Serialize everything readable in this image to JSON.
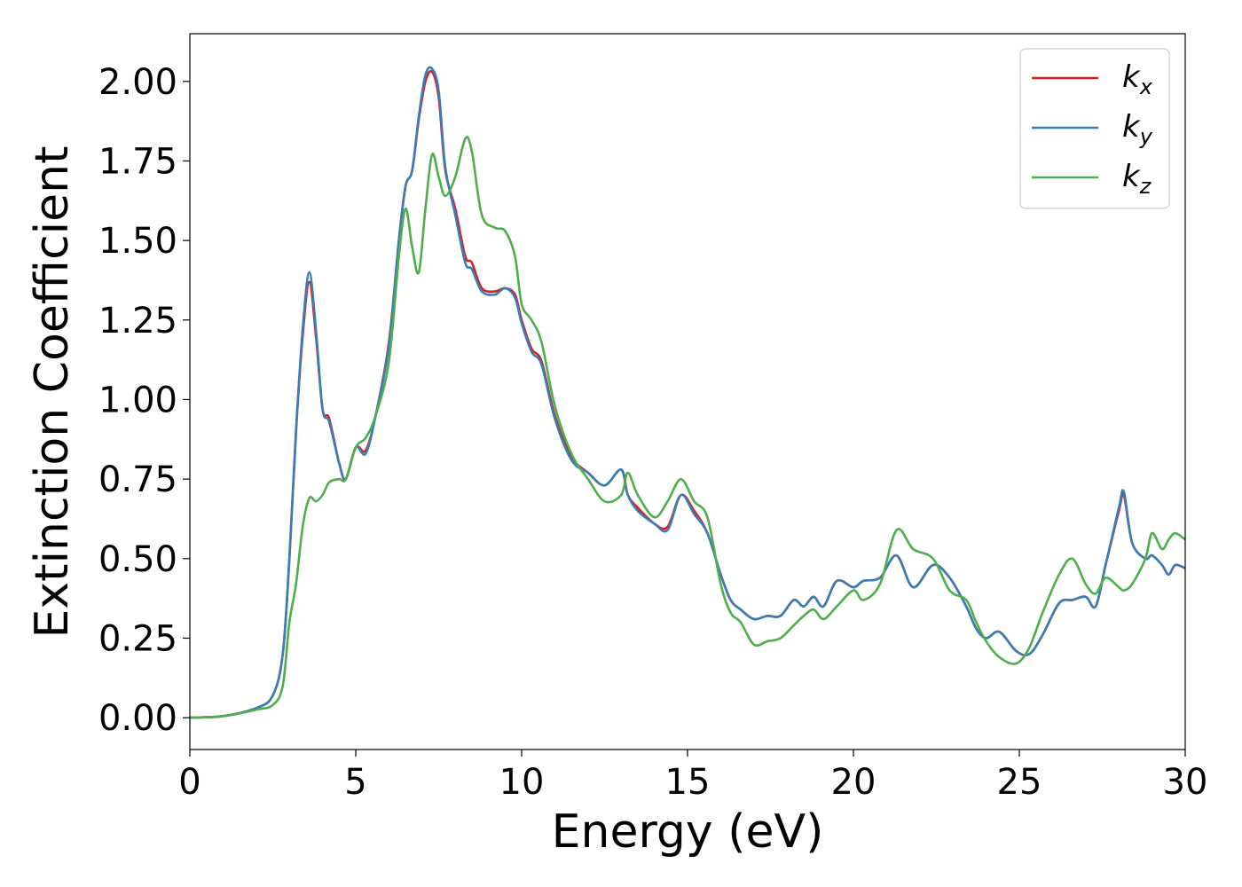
{
  "chart_data": {
    "type": "line",
    "xlabel": "Energy (eV)",
    "ylabel": "Extinction Coefficient",
    "xlim": [
      0,
      30
    ],
    "xticks": [
      0,
      5,
      10,
      15,
      20,
      25,
      30
    ],
    "ylim": [
      -0.1,
      2.15
    ],
    "yticks": [
      {
        "value": 0,
        "label": "0.00"
      },
      {
        "value": 0.25,
        "label": "0.25"
      },
      {
        "value": 0.5,
        "label": "0.50"
      },
      {
        "value": 0.75,
        "label": "0.75"
      },
      {
        "value": 1,
        "label": "1.00"
      },
      {
        "value": 1.25,
        "label": "1.25"
      },
      {
        "value": 1.5,
        "label": "1.50"
      },
      {
        "value": 1.75,
        "label": "1.75"
      },
      {
        "value": 2,
        "label": "2.00"
      }
    ],
    "legend": "upper right",
    "grid": false,
    "x": [
      0,
      1,
      2,
      2.5,
      2.8,
      3.0,
      3.2,
      3.4,
      3.6,
      3.8,
      4.0,
      4.2,
      4.5,
      4.7,
      5.0,
      5.3,
      5.6,
      6.0,
      6.3,
      6.5,
      6.7,
      6.9,
      7.1,
      7.3,
      7.5,
      7.7,
      8.0,
      8.3,
      8.5,
      8.8,
      9.2,
      9.5,
      9.8,
      10.0,
      10.3,
      10.6,
      11.0,
      11.5,
      12.0,
      12.5,
      13.0,
      13.2,
      13.5,
      14.0,
      14.4,
      14.8,
      15.2,
      15.6,
      16.0,
      16.3,
      16.6,
      17.0,
      17.4,
      17.8,
      18.2,
      18.5,
      18.8,
      19.1,
      19.5,
      20.0,
      20.3,
      20.8,
      21.3,
      21.8,
      22.4,
      22.9,
      23.4,
      23.7,
      24.0,
      24.4,
      24.9,
      25.3,
      25.7,
      26.2,
      26.6,
      27.0,
      27.3,
      27.6,
      28.0,
      28.15,
      28.4,
      28.8,
      29.0,
      29.3,
      29.5,
      29.7,
      30.0
    ],
    "series": [
      {
        "name": "kx",
        "color": "#e41a1c",
        "values": [
          0,
          0.005,
          0.03,
          0.07,
          0.2,
          0.5,
          0.9,
          1.2,
          1.37,
          1.2,
          0.97,
          0.94,
          0.8,
          0.75,
          0.85,
          0.84,
          0.95,
          1.18,
          1.5,
          1.67,
          1.72,
          1.88,
          2.0,
          2.03,
          1.95,
          1.72,
          1.6,
          1.45,
          1.43,
          1.35,
          1.34,
          1.35,
          1.33,
          1.25,
          1.16,
          1.12,
          0.95,
          0.82,
          0.77,
          0.73,
          0.78,
          0.7,
          0.66,
          0.61,
          0.6,
          0.7,
          0.65,
          0.58,
          0.45,
          0.37,
          0.34,
          0.31,
          0.32,
          0.32,
          0.37,
          0.35,
          0.38,
          0.35,
          0.43,
          0.41,
          0.43,
          0.44,
          0.51,
          0.41,
          0.48,
          0.44,
          0.35,
          0.28,
          0.25,
          0.27,
          0.21,
          0.2,
          0.26,
          0.36,
          0.37,
          0.38,
          0.35,
          0.48,
          0.65,
          0.7,
          0.55,
          0.5,
          0.51,
          0.48,
          0.45,
          0.48,
          0.47
        ]
      },
      {
        "name": "ky",
        "color": "#377eb8",
        "values": [
          0,
          0.005,
          0.03,
          0.07,
          0.2,
          0.5,
          0.9,
          1.22,
          1.4,
          1.22,
          0.97,
          0.93,
          0.8,
          0.75,
          0.85,
          0.83,
          0.95,
          1.17,
          1.5,
          1.67,
          1.72,
          1.89,
          2.02,
          2.04,
          1.97,
          1.73,
          1.58,
          1.43,
          1.41,
          1.34,
          1.33,
          1.35,
          1.32,
          1.24,
          1.15,
          1.11,
          0.94,
          0.81,
          0.77,
          0.73,
          0.78,
          0.7,
          0.65,
          0.61,
          0.59,
          0.7,
          0.64,
          0.58,
          0.45,
          0.37,
          0.34,
          0.31,
          0.32,
          0.32,
          0.37,
          0.35,
          0.38,
          0.35,
          0.43,
          0.41,
          0.43,
          0.44,
          0.51,
          0.41,
          0.48,
          0.44,
          0.35,
          0.28,
          0.25,
          0.27,
          0.21,
          0.2,
          0.26,
          0.36,
          0.37,
          0.38,
          0.35,
          0.48,
          0.66,
          0.71,
          0.55,
          0.5,
          0.51,
          0.48,
          0.45,
          0.48,
          0.47
        ]
      },
      {
        "name": "kz",
        "color": "#4daf4a",
        "values": [
          0,
          0.005,
          0.025,
          0.04,
          0.1,
          0.3,
          0.42,
          0.6,
          0.69,
          0.68,
          0.7,
          0.74,
          0.75,
          0.75,
          0.85,
          0.88,
          0.95,
          1.12,
          1.45,
          1.6,
          1.48,
          1.4,
          1.6,
          1.77,
          1.7,
          1.64,
          1.7,
          1.82,
          1.78,
          1.58,
          1.54,
          1.53,
          1.45,
          1.3,
          1.25,
          1.18,
          0.98,
          0.83,
          0.75,
          0.68,
          0.7,
          0.77,
          0.7,
          0.63,
          0.68,
          0.75,
          0.68,
          0.63,
          0.42,
          0.33,
          0.3,
          0.23,
          0.24,
          0.25,
          0.29,
          0.32,
          0.34,
          0.31,
          0.35,
          0.4,
          0.37,
          0.42,
          0.59,
          0.53,
          0.5,
          0.4,
          0.37,
          0.3,
          0.24,
          0.19,
          0.17,
          0.22,
          0.33,
          0.45,
          0.5,
          0.42,
          0.39,
          0.44,
          0.41,
          0.4,
          0.42,
          0.5,
          0.58,
          0.53,
          0.56,
          0.58,
          0.56
        ]
      }
    ]
  }
}
